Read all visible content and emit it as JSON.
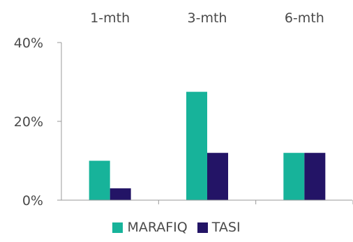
{
  "chart_data": {
    "type": "bar",
    "categories": [
      "1-mth",
      "3-mth",
      "6-mth"
    ],
    "series": [
      {
        "name": "MARAFIQ",
        "color": "#17b39a",
        "values": [
          10,
          27.5,
          12
        ]
      },
      {
        "name": "TASI",
        "color": "#231466",
        "values": [
          3,
          12,
          12
        ]
      }
    ],
    "ylim": [
      0,
      40
    ],
    "yticks": [
      "0%",
      "20%",
      "40%"
    ],
    "ytick_values": [
      0,
      20,
      40
    ],
    "category_labels_position": "top",
    "legend_position": "bottom",
    "grid": false
  }
}
